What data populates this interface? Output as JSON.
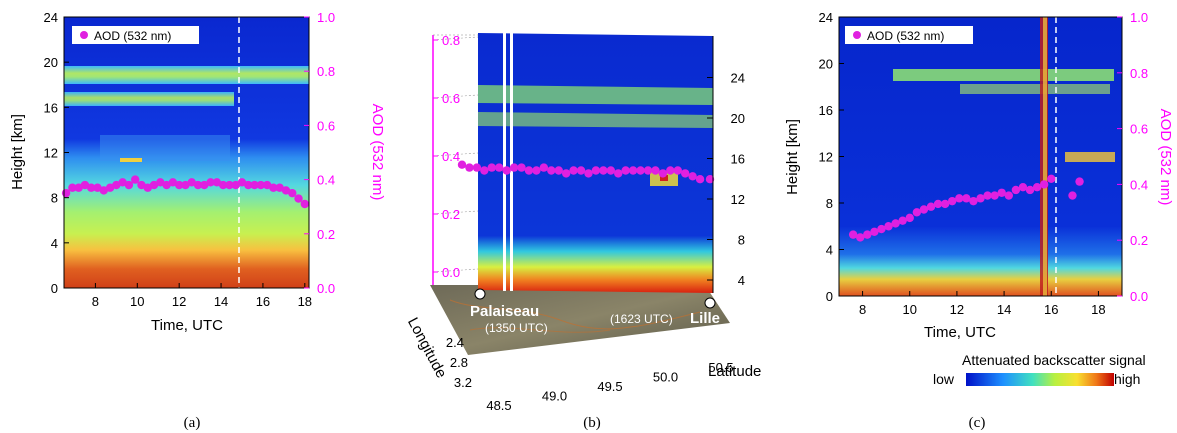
{
  "colors": {
    "aod": "#e020e0",
    "axis_magenta": "#ff00ff",
    "background_blue": "#0a2fd6"
  },
  "colorbar": {
    "title": "Attenuated backscatter signal",
    "low": "low",
    "high": "high"
  },
  "chart_data": [
    {
      "type": "scatter",
      "panel": "(a)",
      "caption": "(a)",
      "xlabel": "Time, UTC",
      "ylabel": "Height [km]",
      "y2label": "AOD (532 nm)",
      "xlim": [
        6.5,
        18.2
      ],
      "ylim": [
        0,
        24
      ],
      "y2lim": [
        0.0,
        1.0
      ],
      "xticks": [
        "8",
        "10",
        "12",
        "14",
        "16",
        "18"
      ],
      "yticks": [
        "0",
        "4",
        "8",
        "12",
        "16",
        "20",
        "24"
      ],
      "y2ticks": [
        "0.0",
        "0.2",
        "0.4",
        "0.6",
        "0.8",
        "1.0"
      ],
      "legend": "AOD (532 nm)",
      "legend_position": "top-left",
      "marker_time": 13.8,
      "series": [
        {
          "name": "AOD (532 nm)",
          "x": [
            6.6,
            6.9,
            7.2,
            7.5,
            7.8,
            8.1,
            8.4,
            8.7,
            9.0,
            9.3,
            9.6,
            9.9,
            10.2,
            10.5,
            10.8,
            11.1,
            11.4,
            11.7,
            12.0,
            12.3,
            12.6,
            12.9,
            13.2,
            13.5,
            13.8,
            14.1,
            14.4,
            14.7,
            15.0,
            15.3,
            15.6,
            15.9,
            16.2,
            16.5,
            16.8,
            17.1,
            17.4,
            17.7,
            18.0
          ],
          "y": [
            0.35,
            0.37,
            0.37,
            0.38,
            0.37,
            0.37,
            0.36,
            0.37,
            0.38,
            0.39,
            0.38,
            0.4,
            0.38,
            0.37,
            0.38,
            0.39,
            0.38,
            0.39,
            0.38,
            0.38,
            0.39,
            0.38,
            0.38,
            0.39,
            0.39,
            0.38,
            0.38,
            0.38,
            0.39,
            0.38,
            0.38,
            0.38,
            0.38,
            0.37,
            0.37,
            0.36,
            0.35,
            0.33,
            0.31
          ]
        }
      ]
    },
    {
      "type": "scatter",
      "panel": "(b)",
      "caption": "(b)",
      "xlabel": "Latitude",
      "ylabel": "Longitude",
      "zticks_left": [
        "0.0",
        "0.2",
        "0.4",
        "0.6",
        "0.8"
      ],
      "zticks_right": [
        "4",
        "8",
        "12",
        "16",
        "20",
        "24"
      ],
      "lat_ticks": [
        "48.5",
        "49.0",
        "49.5",
        "50.0",
        "50.5"
      ],
      "lon_ticks": [
        "2.4",
        "2.8",
        "3.2"
      ],
      "places": [
        {
          "name": "Palaiseau",
          "time": "(1350 UTC)"
        },
        {
          "name": "Lille",
          "time": "(1623 UTC)"
        }
      ],
      "series": [
        {
          "name": "AOD (532 nm)",
          "x": [
            0.0,
            0.03,
            0.06,
            0.09,
            0.12,
            0.15,
            0.18,
            0.21,
            0.24,
            0.27,
            0.3,
            0.33,
            0.36,
            0.39,
            0.42,
            0.45,
            0.48,
            0.51,
            0.54,
            0.57,
            0.6,
            0.63,
            0.66,
            0.69,
            0.72,
            0.75,
            0.78,
            0.81,
            0.84,
            0.87,
            0.9,
            0.93,
            0.96,
            1.0
          ],
          "y": [
            0.37,
            0.36,
            0.36,
            0.35,
            0.36,
            0.36,
            0.35,
            0.36,
            0.36,
            0.35,
            0.35,
            0.36,
            0.35,
            0.35,
            0.34,
            0.35,
            0.35,
            0.34,
            0.35,
            0.35,
            0.35,
            0.34,
            0.35,
            0.35,
            0.35,
            0.35,
            0.35,
            0.34,
            0.35,
            0.35,
            0.34,
            0.33,
            0.32,
            0.32
          ]
        }
      ]
    },
    {
      "type": "scatter",
      "panel": "(c)",
      "caption": "(c)",
      "xlabel": "Time, UTC",
      "ylabel": "Height [km]",
      "y2label": "AOD (532 nm)",
      "xlim": [
        7.0,
        19.0
      ],
      "ylim": [
        0,
        24
      ],
      "y2lim": [
        0.0,
        1.0
      ],
      "xticks": [
        "8",
        "10",
        "12",
        "14",
        "16",
        "18"
      ],
      "yticks": [
        "0",
        "4",
        "8",
        "12",
        "16",
        "20",
        "24"
      ],
      "y2ticks": [
        "0.0",
        "0.2",
        "0.4",
        "0.6",
        "0.8",
        "1.0"
      ],
      "legend": "AOD (532 nm)",
      "legend_position": "top-left",
      "marker_time": 16.2,
      "series": [
        {
          "name": "AOD (532 nm)",
          "x": [
            7.6,
            7.9,
            8.2,
            8.5,
            8.8,
            9.1,
            9.4,
            9.7,
            10.0,
            10.3,
            10.6,
            10.9,
            11.2,
            11.5,
            11.8,
            12.1,
            12.4,
            12.7,
            13.0,
            13.3,
            13.6,
            13.9,
            14.2,
            14.5,
            14.8,
            15.1,
            15.4,
            15.7,
            16.0,
            16.9,
            17.2
          ],
          "y": [
            0.22,
            0.21,
            0.22,
            0.23,
            0.24,
            0.25,
            0.26,
            0.27,
            0.28,
            0.3,
            0.31,
            0.32,
            0.33,
            0.33,
            0.34,
            0.35,
            0.35,
            0.34,
            0.35,
            0.36,
            0.36,
            0.37,
            0.36,
            0.38,
            0.39,
            0.38,
            0.39,
            0.4,
            0.42,
            0.36,
            0.41
          ]
        }
      ]
    }
  ]
}
